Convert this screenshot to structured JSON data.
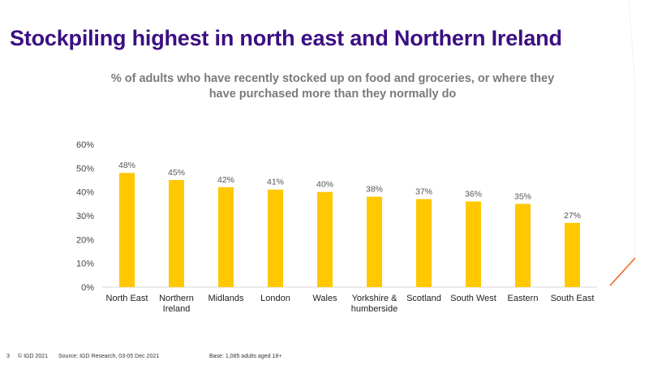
{
  "title": "Stockpiling highest in north east and Northern Ireland",
  "subtitle": "% of adults who have recently stocked up on food and groceries, or where they have purchased more than they normally do",
  "chart_data": {
    "type": "bar",
    "categories": [
      [
        "North East"
      ],
      [
        "Northern",
        "Ireland"
      ],
      [
        "Midlands"
      ],
      [
        "London"
      ],
      [
        "Wales"
      ],
      [
        "Yorkshire &",
        "humberside"
      ],
      [
        "Scotland"
      ],
      [
        "South West"
      ],
      [
        "Eastern"
      ],
      [
        "South East"
      ]
    ],
    "values": [
      48,
      45,
      42,
      41,
      40,
      38,
      37,
      36,
      35,
      27
    ],
    "value_labels": [
      "48%",
      "45%",
      "42%",
      "41%",
      "40%",
      "38%",
      "37%",
      "36%",
      "35%",
      "27%"
    ],
    "yticks": [
      "0%",
      "10%",
      "20%",
      "30%",
      "40%",
      "50%",
      "60%"
    ],
    "ylim": [
      0,
      60
    ],
    "grid": false,
    "bar_color": "#ffc800"
  },
  "footer": {
    "page_number": "3",
    "copyright": "© IGD 2021",
    "source": "Source: IGD Research, 03-05 Dec 2021",
    "base": "Base: 1,085 adults aged 18+"
  },
  "colors": {
    "title": "#3b0f82",
    "subtitle": "#7a7a7a",
    "accent": "#f26522"
  }
}
